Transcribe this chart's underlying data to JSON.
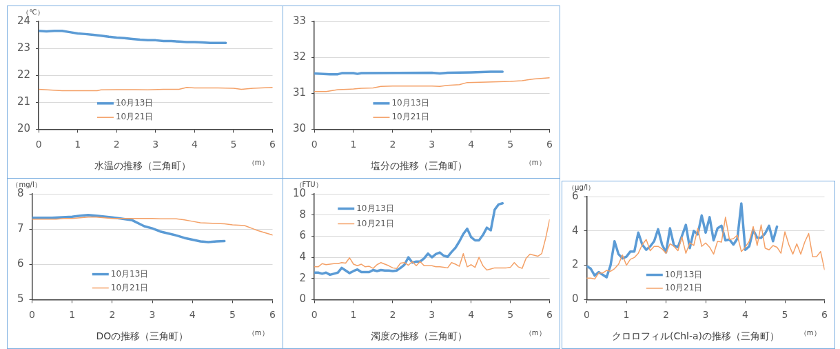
{
  "chart_data": [
    {
      "type": "line",
      "title": "水温の推移（三角町）",
      "xlabel": "（m）",
      "ylabel": "（℃）",
      "xlim": [
        0,
        6
      ],
      "xticks": [
        0,
        1,
        2,
        3,
        4,
        5,
        6
      ],
      "ylim": [
        20,
        24
      ],
      "yticks": [
        20,
        21,
        22,
        23,
        24
      ],
      "grid": "y",
      "legend": "bottom left",
      "marker": "none",
      "series": [
        {
          "name": "10月13日",
          "color": "#5b9bd5",
          "x": [
            0,
            0.2,
            0.4,
            0.6,
            0.8,
            1.0,
            1.2,
            1.4,
            1.6,
            1.8,
            2.0,
            2.2,
            2.4,
            2.6,
            2.8,
            3.0,
            3.2,
            3.4,
            3.6,
            3.8,
            4.0,
            4.2,
            4.4,
            4.6,
            4.8
          ],
          "values": [
            23.65,
            23.63,
            23.65,
            23.65,
            23.6,
            23.55,
            23.53,
            23.5,
            23.47,
            23.43,
            23.4,
            23.38,
            23.35,
            23.32,
            23.3,
            23.3,
            23.27,
            23.27,
            23.25,
            23.23,
            23.23,
            23.22,
            23.2,
            23.2,
            23.2
          ]
        },
        {
          "name": "10月21日",
          "color": "#f4a066",
          "x": [
            0,
            0.6,
            1.5,
            1.6,
            2.0,
            2.5,
            2.8,
            3.2,
            3.6,
            3.8,
            4.0,
            4.6,
            5.0,
            5.2,
            5.5,
            6.0
          ],
          "values": [
            21.48,
            21.43,
            21.43,
            21.46,
            21.47,
            21.47,
            21.46,
            21.48,
            21.48,
            21.55,
            21.53,
            21.53,
            21.52,
            21.48,
            21.52,
            21.55
          ]
        }
      ]
    },
    {
      "type": "line",
      "title": "塩分の推移（三角町）",
      "xlabel": "（m）",
      "xlim": [
        0,
        6
      ],
      "xticks": [
        0,
        1,
        2,
        3,
        4,
        5,
        6
      ],
      "ylim": [
        30,
        33
      ],
      "yticks": [
        30,
        31,
        32,
        33
      ],
      "grid": "y",
      "legend": "bottom left",
      "marker": "none",
      "series": [
        {
          "name": "10月13日",
          "color": "#5b9bd5",
          "x": [
            0,
            0.4,
            0.6,
            0.7,
            1.0,
            1.1,
            1.2,
            3.0,
            3.2,
            3.4,
            4.0,
            4.5,
            4.8
          ],
          "values": [
            31.55,
            31.53,
            31.53,
            31.56,
            31.56,
            31.54,
            31.56,
            31.57,
            31.55,
            31.57,
            31.58,
            31.6,
            31.6
          ]
        },
        {
          "name": "10月21日",
          "color": "#f4a066",
          "x": [
            0,
            0.3,
            0.6,
            1.0,
            1.2,
            1.5,
            1.7,
            2.0,
            3.0,
            3.2,
            3.4,
            3.7,
            3.9,
            4.4,
            5.0,
            5.3,
            5.6,
            6.0
          ],
          "values": [
            31.05,
            31.05,
            31.1,
            31.12,
            31.14,
            31.15,
            31.19,
            31.2,
            31.2,
            31.19,
            31.22,
            31.24,
            31.3,
            31.31,
            31.33,
            31.35,
            31.4,
            31.43
          ]
        }
      ]
    },
    {
      "type": "line",
      "title": "DOの推移（三角町）",
      "xlabel": "（m）",
      "ylabel": "（mg/l）",
      "xlim": [
        0,
        6
      ],
      "xticks": [
        0,
        1,
        2,
        3,
        4,
        5,
        6
      ],
      "ylim": [
        5,
        8
      ],
      "yticks": [
        5,
        6,
        7,
        8
      ],
      "grid": "y",
      "legend": "bottom left",
      "marker": "none",
      "series": [
        {
          "name": "10月13日",
          "color": "#5b9bd5",
          "x": [
            0,
            0.5,
            1.0,
            1.2,
            1.4,
            1.6,
            2.0,
            2.2,
            2.5,
            2.8,
            3.0,
            3.2,
            3.6,
            3.8,
            4.0,
            4.2,
            4.4,
            4.6,
            4.8
          ],
          "values": [
            7.32,
            7.32,
            7.35,
            7.38,
            7.4,
            7.38,
            7.33,
            7.3,
            7.25,
            7.08,
            7.02,
            6.93,
            6.82,
            6.75,
            6.7,
            6.65,
            6.63,
            6.65,
            6.66
          ]
        },
        {
          "name": "10月21日",
          "color": "#f4a066",
          "x": [
            0,
            0.6,
            0.8,
            1.0,
            1.4,
            1.6,
            2.0,
            2.4,
            3.0,
            3.2,
            3.6,
            3.8,
            4.0,
            4.2,
            4.4,
            4.6,
            4.8,
            5.0,
            5.3,
            5.6,
            6.0
          ],
          "values": [
            7.28,
            7.28,
            7.3,
            7.3,
            7.34,
            7.34,
            7.3,
            7.3,
            7.3,
            7.29,
            7.29,
            7.26,
            7.22,
            7.18,
            7.17,
            7.16,
            7.15,
            7.12,
            7.1,
            6.97,
            6.83
          ]
        }
      ]
    },
    {
      "type": "line",
      "title": "濁度の推移（三角町）",
      "xlabel": "（m）",
      "ylabel": "（FTU）",
      "xlim": [
        0,
        6
      ],
      "xticks": [
        0,
        1,
        2,
        3,
        4,
        5,
        6
      ],
      "ylim": [
        0,
        10
      ],
      "yticks": [
        0,
        2,
        4,
        6,
        8,
        10
      ],
      "grid": "y",
      "legend": "top left",
      "marker": "none",
      "series": [
        {
          "name": "10月13日",
          "color": "#5b9bd5",
          "x": [
            0,
            0.1,
            0.2,
            0.3,
            0.4,
            0.5,
            0.6,
            0.7,
            0.8,
            0.9,
            1.0,
            1.1,
            1.2,
            1.3,
            1.4,
            1.5,
            1.6,
            1.7,
            1.8,
            1.9,
            2.0,
            2.1,
            2.2,
            2.3,
            2.4,
            2.5,
            2.6,
            2.7,
            2.8,
            2.9,
            3.0,
            3.1,
            3.2,
            3.3,
            3.4,
            3.5,
            3.6,
            3.7,
            3.8,
            3.9,
            4.0,
            4.1,
            4.2,
            4.3,
            4.4,
            4.5,
            4.6,
            4.7,
            4.8
          ],
          "values": [
            2.55,
            2.55,
            2.45,
            2.55,
            2.35,
            2.45,
            2.55,
            3.0,
            2.75,
            2.5,
            2.7,
            2.85,
            2.6,
            2.6,
            2.6,
            2.8,
            2.7,
            2.8,
            2.75,
            2.75,
            2.7,
            2.75,
            3.0,
            3.3,
            4.0,
            3.5,
            3.6,
            3.6,
            3.9,
            4.35,
            4.0,
            4.3,
            4.45,
            4.15,
            4.05,
            4.5,
            4.9,
            5.5,
            6.2,
            6.7,
            5.9,
            5.6,
            5.6,
            6.1,
            6.8,
            6.55,
            8.5,
            9.0,
            9.1
          ]
        },
        {
          "name": "10月21日",
          "color": "#f4a066",
          "x": [
            0,
            0.1,
            0.2,
            0.3,
            0.4,
            0.5,
            0.6,
            0.7,
            0.8,
            0.9,
            1.0,
            1.1,
            1.2,
            1.3,
            1.4,
            1.5,
            1.6,
            1.7,
            1.8,
            1.9,
            2.0,
            2.1,
            2.2,
            2.3,
            2.4,
            2.5,
            2.6,
            2.7,
            2.8,
            2.9,
            3.0,
            3.1,
            3.2,
            3.3,
            3.4,
            3.5,
            3.6,
            3.7,
            3.8,
            3.9,
            4.0,
            4.1,
            4.2,
            4.3,
            4.4,
            4.5,
            4.6,
            4.7,
            4.8,
            4.9,
            5.0,
            5.1,
            5.2,
            5.3,
            5.4,
            5.5,
            5.6,
            5.7,
            5.8,
            5.9,
            6.0
          ],
          "values": [
            3.1,
            3.1,
            3.4,
            3.3,
            3.35,
            3.4,
            3.4,
            3.5,
            3.45,
            3.95,
            3.35,
            3.2,
            3.35,
            3.1,
            3.15,
            2.95,
            3.3,
            3.5,
            3.35,
            3.2,
            3.0,
            2.95,
            3.45,
            3.5,
            3.25,
            3.6,
            3.2,
            3.6,
            3.2,
            3.2,
            3.2,
            3.1,
            3.1,
            3.05,
            3.0,
            3.5,
            3.35,
            3.15,
            4.35,
            3.1,
            3.3,
            3.05,
            4.0,
            3.2,
            2.8,
            2.9,
            3.0,
            3.0,
            3.0,
            3.0,
            3.05,
            3.5,
            3.1,
            2.95,
            3.9,
            4.3,
            4.2,
            4.1,
            4.35,
            5.8,
            7.55
          ]
        }
      ]
    },
    {
      "type": "line",
      "title": "クロロフィル(Chl-a)の推移（三角町）",
      "xlabel": "（m）",
      "ylabel": "（μg/l）",
      "xlim": [
        0,
        6
      ],
      "xticks": [
        0,
        1,
        2,
        3,
        4,
        5,
        6
      ],
      "ylim": [
        0,
        6
      ],
      "yticks": [
        0,
        2,
        4,
        6
      ],
      "grid": "y",
      "legend": "bottom left",
      "marker": "none",
      "series": [
        {
          "name": "10月13日",
          "color": "#5b9bd5",
          "x": [
            0,
            0.1,
            0.2,
            0.3,
            0.4,
            0.5,
            0.6,
            0.7,
            0.8,
            0.9,
            1.0,
            1.1,
            1.2,
            1.3,
            1.4,
            1.5,
            1.6,
            1.7,
            1.8,
            1.9,
            2.0,
            2.1,
            2.2,
            2.3,
            2.4,
            2.5,
            2.6,
            2.7,
            2.8,
            2.9,
            3.0,
            3.1,
            3.2,
            3.3,
            3.4,
            3.5,
            3.6,
            3.7,
            3.8,
            3.9,
            4.0,
            4.1,
            4.2,
            4.3,
            4.4,
            4.5,
            4.6,
            4.7,
            4.8
          ],
          "values": [
            1.95,
            1.8,
            1.4,
            1.6,
            1.45,
            1.3,
            2.0,
            3.4,
            2.65,
            2.4,
            2.5,
            2.8,
            2.8,
            3.9,
            3.2,
            2.9,
            3.1,
            3.4,
            4.1,
            3.2,
            2.75,
            4.15,
            3.15,
            3.05,
            3.7,
            4.35,
            3.0,
            4.0,
            3.8,
            4.9,
            3.9,
            4.8,
            3.45,
            4.15,
            4.3,
            3.45,
            3.5,
            3.2,
            3.55,
            5.6,
            2.9,
            3.1,
            4.05,
            3.6,
            3.6,
            3.85,
            4.3,
            3.4,
            4.25
          ]
        },
        {
          "name": "10月21日",
          "color": "#f4a066",
          "x": [
            0,
            0.1,
            0.2,
            0.3,
            0.4,
            0.5,
            0.6,
            0.7,
            0.8,
            0.9,
            1.0,
            1.1,
            1.2,
            1.3,
            1.4,
            1.5,
            1.6,
            1.7,
            1.8,
            1.9,
            2.0,
            2.1,
            2.2,
            2.3,
            2.4,
            2.5,
            2.6,
            2.7,
            2.8,
            2.9,
            3.0,
            3.1,
            3.2,
            3.3,
            3.4,
            3.5,
            3.6,
            3.7,
            3.8,
            3.9,
            4.0,
            4.1,
            4.2,
            4.3,
            4.4,
            4.5,
            4.6,
            4.7,
            4.8,
            4.9,
            5.0,
            5.1,
            5.2,
            5.3,
            5.4,
            5.5,
            5.6,
            5.7,
            5.8,
            5.9,
            6.0
          ],
          "values": [
            1.25,
            1.25,
            1.2,
            1.55,
            1.55,
            1.7,
            1.65,
            1.8,
            2.05,
            2.6,
            2.0,
            2.35,
            2.45,
            2.7,
            3.2,
            3.5,
            2.85,
            3.1,
            3.1,
            2.95,
            2.7,
            3.25,
            3.1,
            2.85,
            3.65,
            2.7,
            3.3,
            3.15,
            4.15,
            3.1,
            3.3,
            3.05,
            2.65,
            3.4,
            3.35,
            4.8,
            3.5,
            3.55,
            3.75,
            2.8,
            3.05,
            3.4,
            4.25,
            3.15,
            4.35,
            3.0,
            2.9,
            3.15,
            3.05,
            2.7,
            3.95,
            3.2,
            2.65,
            3.25,
            2.65,
            3.35,
            3.85,
            2.5,
            2.5,
            2.8,
            1.75
          ]
        }
      ]
    }
  ]
}
